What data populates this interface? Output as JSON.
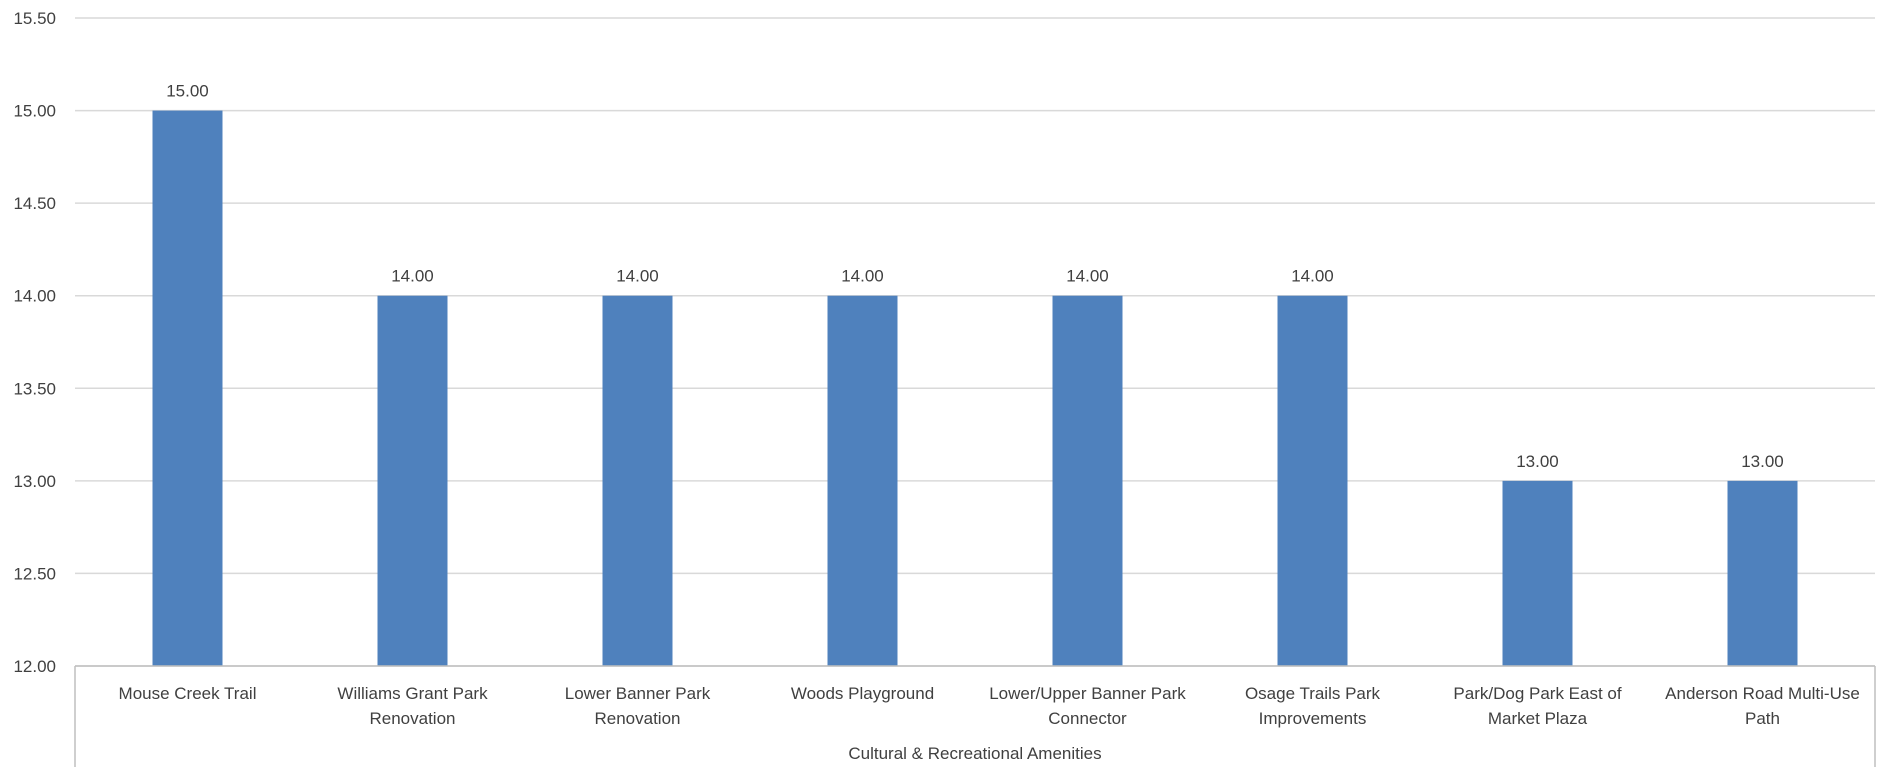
{
  "chart_data": {
    "type": "bar",
    "group_label": "Cultural & Recreational Amenities",
    "categories": [
      [
        "Mouse Creek Trail"
      ],
      [
        "Williams Grant Park",
        "Renovation"
      ],
      [
        "Lower Banner Park",
        "Renovation"
      ],
      [
        "Woods Playground"
      ],
      [
        "Lower/Upper Banner Park",
        "Connector"
      ],
      [
        "Osage Trails Park",
        "Improvements"
      ],
      [
        "Park/Dog Park East of",
        "Market Plaza"
      ],
      [
        "Anderson Road Multi-Use",
        "Path"
      ]
    ],
    "values": [
      15.0,
      14.0,
      14.0,
      14.0,
      14.0,
      14.0,
      13.0,
      13.0
    ],
    "value_labels": [
      "15.00",
      "14.00",
      "14.00",
      "14.00",
      "14.00",
      "14.00",
      "13.00",
      "13.00"
    ],
    "ylim": [
      12.0,
      15.5
    ],
    "yticks": [
      12.0,
      12.5,
      13.0,
      13.5,
      14.0,
      14.5,
      15.0,
      15.5
    ],
    "ytick_labels": [
      "12.00",
      "12.50",
      "13.00",
      "13.50",
      "14.00",
      "14.50",
      "15.00",
      "15.50"
    ],
    "grid": true,
    "colors": {
      "bar": "#4F81BD",
      "grid": "#D9D9D9",
      "axis": "#BFBFBF",
      "text": "#404040"
    }
  }
}
